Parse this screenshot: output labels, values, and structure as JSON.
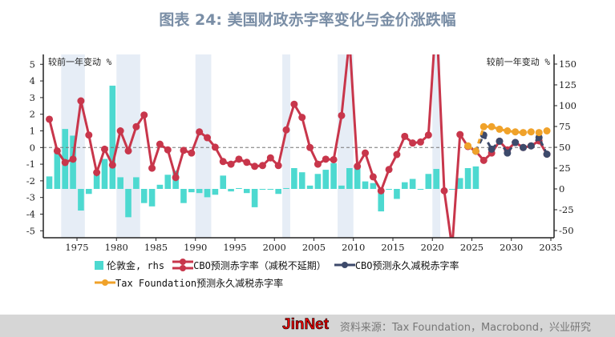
{
  "title": "图表 24: 美国财政赤字率变化与金价涨跌幅",
  "footer": {
    "source": "资料来源：Tax Foundation，Macrobond，兴业研究",
    "watermark": "JinNet"
  },
  "chart_data": {
    "type": "bar+line",
    "left_axis": {
      "unit_label": "较前一年变动 %",
      "range": [
        -5,
        5
      ],
      "ticks": [
        5,
        4,
        3,
        2,
        1,
        0,
        -1,
        -2,
        -3,
        -4,
        -5
      ]
    },
    "right_axis": {
      "unit_label": "较前一年变动 %",
      "range": [
        -50,
        150
      ],
      "ticks": [
        150,
        125,
        100,
        75,
        50,
        25,
        0,
        -25,
        -50
      ]
    },
    "x_axis": {
      "range": [
        1971,
        2035
      ],
      "ticks": [
        1975,
        1980,
        1985,
        1990,
        1995,
        2000,
        2005,
        2010,
        2015,
        2020,
        2025,
        2030,
        2035
      ]
    },
    "zero_line": "dashed at left 0",
    "shaded_periods": [
      [
        1973,
        1976
      ],
      [
        1980,
        1983
      ],
      [
        1990,
        1992
      ],
      [
        2001,
        2002
      ],
      [
        2008,
        2010
      ],
      [
        2020,
        2021
      ]
    ],
    "shade_color": "#e6edf6",
    "series": [
      {
        "name": "伦敦金, rhs",
        "kind": "bar",
        "axis": "right",
        "color": "#4dd9d0",
        "x": [
          1971,
          1972,
          1973,
          1974,
          1975,
          1976,
          1977,
          1978,
          1979,
          1980,
          1981,
          1982,
          1983,
          1984,
          1985,
          1986,
          1987,
          1988,
          1989,
          1990,
          1991,
          1992,
          1993,
          1994,
          1995,
          1996,
          1997,
          1998,
          1999,
          2000,
          2001,
          2002,
          2003,
          2004,
          2005,
          2006,
          2007,
          2008,
          2009,
          2010,
          2011,
          2012,
          2013,
          2014,
          2015,
          2016,
          2017,
          2018,
          2019,
          2020,
          2021,
          2022,
          2023,
          2024,
          2025
        ],
        "values": [
          15,
          45,
          72,
          64,
          -26,
          -6,
          17,
          36,
          124,
          14,
          -34,
          14,
          -17,
          -21,
          5,
          17,
          22,
          -17,
          -4,
          -5,
          -10,
          -7,
          16,
          -3,
          1,
          -5,
          -22,
          -1,
          0,
          -6,
          1,
          25,
          20,
          4,
          18,
          23,
          31,
          4,
          25,
          25,
          9,
          7,
          -27,
          0,
          -12,
          8,
          12,
          -1,
          18,
          24,
          -4,
          0,
          13,
          25,
          27
        ]
      },
      {
        "name": "CBO预测赤字率（减税不延期）",
        "kind": "line",
        "axis": "left",
        "color": "#c8364b",
        "x": [
          1971,
          1972,
          1973,
          1974,
          1975,
          1976,
          1977,
          1978,
          1979,
          1980,
          1981,
          1982,
          1983,
          1984,
          1985,
          1986,
          1987,
          1988,
          1989,
          1990,
          1991,
          1992,
          1993,
          1994,
          1995,
          1996,
          1997,
          1998,
          1999,
          2000,
          2001,
          2002,
          2003,
          2004,
          2005,
          2006,
          2007,
          2008,
          2009,
          2010,
          2011,
          2012,
          2013,
          2014,
          2015,
          2016,
          2017,
          2018,
          2019,
          2020,
          2021,
          2022,
          2023,
          2024,
          2025,
          2026,
          2027,
          2028,
          2029,
          2030,
          2031,
          2032,
          2033,
          2034
        ],
        "values": [
          1.7,
          -0.2,
          -0.9,
          -0.7,
          2.8,
          0.75,
          -1.5,
          -0.1,
          -1.05,
          1.0,
          -0.2,
          1.25,
          1.95,
          -1.24,
          0.2,
          -0.14,
          -1.8,
          -0.17,
          -0.33,
          0.94,
          0.59,
          0.02,
          -0.84,
          -1.0,
          -0.7,
          -0.89,
          -1.13,
          -1.08,
          -0.62,
          -1.08,
          1.06,
          2.6,
          1.81,
          0.0,
          -1.0,
          -0.7,
          -0.73,
          1.92,
          6.5,
          -1.13,
          -0.33,
          -1.76,
          -2.6,
          -1.32,
          -0.42,
          0.67,
          0.27,
          0.33,
          0.75,
          8.0,
          -2.6,
          -6.0,
          0.78,
          0.06,
          -0.22,
          -0.77,
          -0.33,
          0.38,
          -0.14,
          0.3,
          0.0,
          0.1,
          0.4,
          -0.4
        ]
      },
      {
        "name": "CBO预测永久减税赤字率",
        "kind": "dashed-line",
        "axis": "left",
        "color": "#3d4a6b",
        "x": [
          2025,
          2026,
          2027,
          2028,
          2029,
          2030,
          2031,
          2032,
          2033,
          2034
        ],
        "values": [
          -0.22,
          0.75,
          -0.1,
          0.38,
          -0.33,
          0.3,
          0.0,
          0.1,
          0.6,
          -0.4
        ]
      },
      {
        "name": "Tax Foundation预测永久减税赤字率",
        "kind": "dashed-line",
        "axis": "left",
        "color": "#f0a22a",
        "x": [
          2024,
          2025,
          2026,
          2027,
          2028,
          2029,
          2030,
          2031,
          2032,
          2033,
          2034
        ],
        "values": [
          0.1,
          -0.22,
          1.25,
          1.25,
          1.1,
          1.0,
          0.94,
          0.9,
          0.94,
          0.9,
          1.0
        ]
      }
    ],
    "legend_placement": "bottom"
  }
}
